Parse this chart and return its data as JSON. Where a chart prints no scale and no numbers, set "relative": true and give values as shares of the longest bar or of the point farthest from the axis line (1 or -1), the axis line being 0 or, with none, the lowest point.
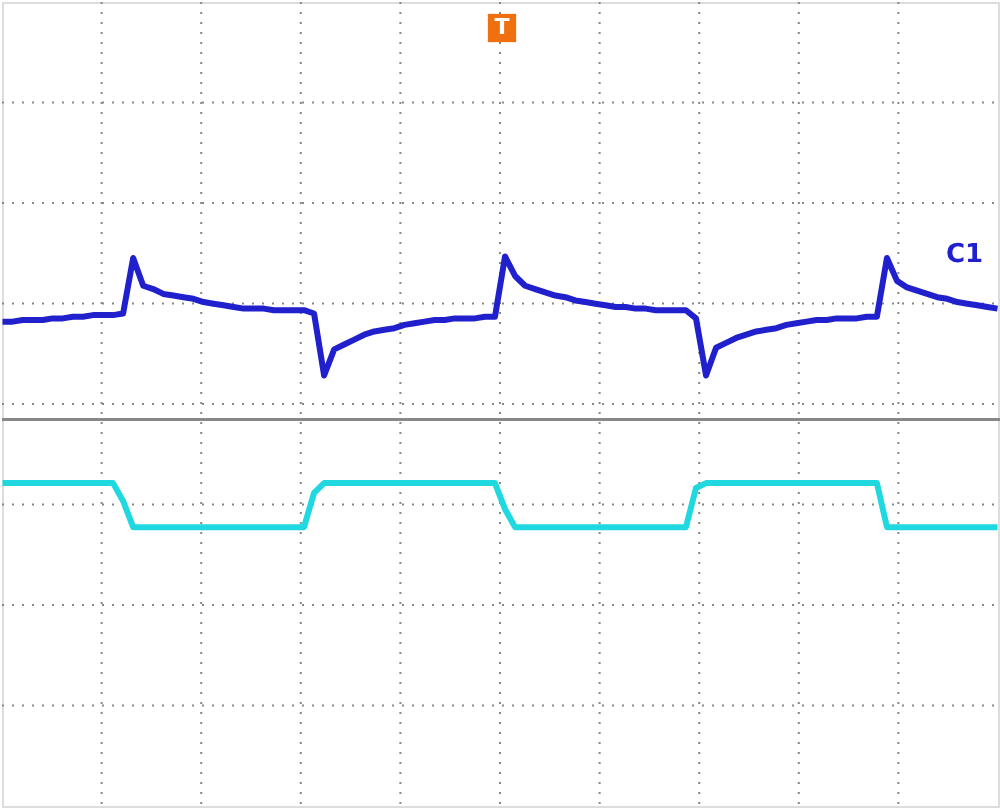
{
  "chart_data": {
    "type": "line",
    "relative": true,
    "line_style": "solid",
    "grid": true,
    "categories": [
      null,
      null,
      null,
      null,
      null,
      null,
      null,
      null,
      null,
      null,
      null,
      null,
      null,
      null,
      null,
      null,
      null,
      null,
      null,
      null,
      null,
      null,
      null,
      null,
      null,
      null,
      null,
      null,
      null,
      null,
      null,
      null,
      null,
      null,
      null,
      null,
      null,
      null,
      null,
      null,
      null,
      null,
      null,
      null,
      null,
      null,
      null,
      null,
      null,
      null,
      null,
      null,
      null,
      null,
      null,
      null,
      null,
      null,
      null,
      null,
      null,
      null,
      null,
      null,
      null,
      null,
      null,
      null,
      null,
      null,
      null,
      null,
      null,
      null,
      null,
      null,
      null,
      null,
      null,
      null,
      null,
      null,
      null,
      null,
      null,
      null,
      null,
      null,
      null,
      null,
      null,
      null,
      null,
      null,
      null,
      null,
      null,
      null,
      null,
      null
    ],
    "series": [
      {
        "color": "#2020cc",
        "values": [
          0.6,
          0.6,
          0.61,
          0.61,
          0.61,
          0.62,
          0.62,
          0.63,
          0.63,
          0.64,
          0.64,
          0.64,
          0.65,
          0.99,
          0.82,
          0.8,
          0.77,
          0.76,
          0.75,
          0.74,
          0.72,
          0.71,
          0.7,
          0.69,
          0.68,
          0.68,
          0.68,
          0.67,
          0.67,
          0.67,
          0.67,
          0.65,
          0.27,
          0.43,
          0.46,
          0.49,
          0.52,
          0.54,
          0.55,
          0.56,
          0.58,
          0.59,
          0.6,
          0.61,
          0.61,
          0.62,
          0.62,
          0.62,
          0.63,
          0.63,
          1.0,
          0.88,
          0.82,
          0.8,
          0.78,
          0.76,
          0.75,
          0.73,
          0.72,
          0.71,
          0.7,
          0.69,
          0.69,
          0.68,
          0.68,
          0.67,
          0.67,
          0.67,
          0.67,
          0.62,
          0.27,
          0.44,
          0.47,
          0.5,
          0.52,
          0.54,
          0.55,
          0.56,
          0.58,
          0.59,
          0.6,
          0.61,
          0.61,
          0.62,
          0.62,
          0.62,
          0.63,
          0.63,
          0.99,
          0.85,
          0.81,
          0.79,
          0.77,
          0.75,
          0.74,
          0.72,
          0.71,
          0.7,
          0.69,
          0.68
        ]
      },
      {
        "color": "#20d8e0",
        "values": [
          -0.39,
          -0.39,
          -0.39,
          -0.39,
          -0.39,
          -0.39,
          -0.39,
          -0.39,
          -0.39,
          -0.39,
          -0.39,
          -0.39,
          -0.5,
          -0.66,
          -0.66,
          -0.66,
          -0.66,
          -0.66,
          -0.66,
          -0.66,
          -0.66,
          -0.66,
          -0.66,
          -0.66,
          -0.66,
          -0.66,
          -0.66,
          -0.66,
          -0.66,
          -0.66,
          -0.66,
          -0.45,
          -0.39,
          -0.39,
          -0.39,
          -0.39,
          -0.39,
          -0.39,
          -0.39,
          -0.39,
          -0.39,
          -0.39,
          -0.39,
          -0.39,
          -0.39,
          -0.39,
          -0.39,
          -0.39,
          -0.39,
          -0.39,
          -0.55,
          -0.66,
          -0.66,
          -0.66,
          -0.66,
          -0.66,
          -0.66,
          -0.66,
          -0.66,
          -0.66,
          -0.66,
          -0.66,
          -0.66,
          -0.66,
          -0.66,
          -0.66,
          -0.66,
          -0.66,
          -0.66,
          -0.42,
          -0.39,
          -0.39,
          -0.39,
          -0.39,
          -0.39,
          -0.39,
          -0.39,
          -0.39,
          -0.39,
          -0.39,
          -0.39,
          -0.39,
          -0.39,
          -0.39,
          -0.39,
          -0.39,
          -0.39,
          -0.39,
          -0.66,
          -0.66,
          -0.66,
          -0.66,
          -0.66,
          -0.66,
          -0.66,
          -0.66,
          -0.66,
          -0.66,
          -0.66,
          -0.66
        ]
      }
    ],
    "annotations": [
      "C1",
      "T"
    ]
  }
}
